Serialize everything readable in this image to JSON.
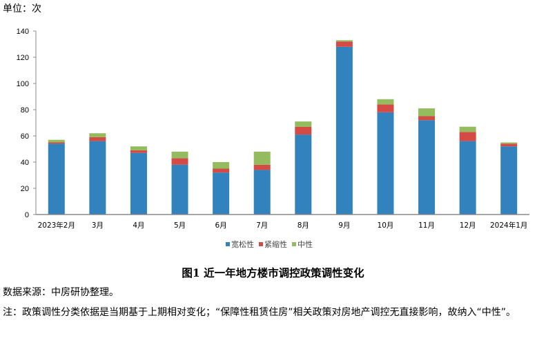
{
  "unit_label": "单位：次",
  "chart_data": {
    "type": "bar",
    "stacked": true,
    "title": "图1 近一年地方楼市调控政策调性变化",
    "xlabel": "",
    "ylabel": "",
    "ylim": [
      0,
      140
    ],
    "yticks": [
      0,
      20,
      40,
      60,
      80,
      100,
      120,
      140
    ],
    "grid": false,
    "legend_position": "bottom",
    "categories": [
      "2023年2月",
      "3月",
      "4月",
      "5月",
      "6月",
      "7月",
      "8月",
      "9月",
      "10月",
      "11月",
      "12月",
      "2024年1月"
    ],
    "series": [
      {
        "name": "宽松性",
        "color": "#3182bd",
        "values": [
          54,
          56,
          47,
          38,
          32,
          34,
          61,
          128,
          78,
          72,
          56,
          52
        ]
      },
      {
        "name": "紧缩性",
        "color": "#d44a45",
        "values": [
          1,
          3,
          2,
          5,
          3,
          4,
          6,
          4,
          6,
          3,
          7,
          2
        ]
      },
      {
        "name": "中性",
        "color": "#94bb5e",
        "values": [
          2,
          3,
          3,
          5,
          5,
          10,
          4,
          1,
          4,
          6,
          4,
          1
        ]
      }
    ]
  },
  "source": "数据来源：中房研协整理。",
  "note": "注：政策调性分类依据是当期基于上期相对变化；“保障性租赁住房”相关政策对房地产调控无直接影响，故纳入“中性”。"
}
